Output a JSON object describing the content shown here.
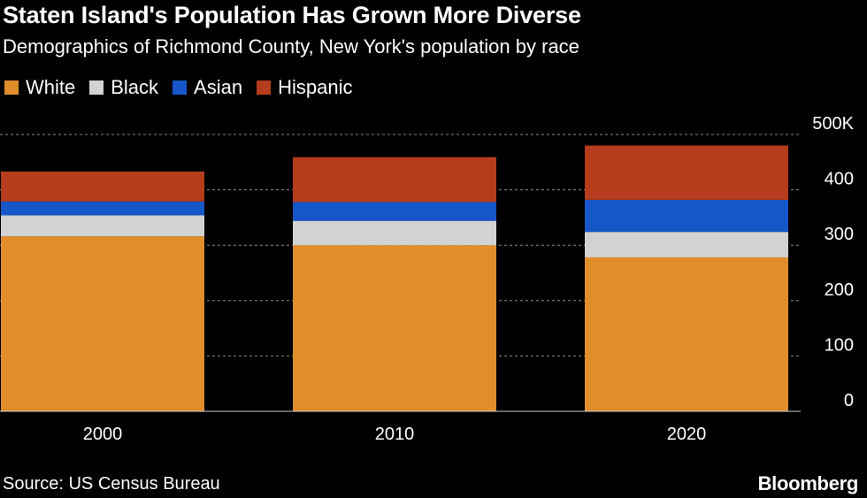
{
  "header": {
    "title": "Staten Island's Population Has Grown More Diverse",
    "subtitle": "Demographics of Richmond County, New York's population by race"
  },
  "footer": {
    "source": "Source: US Census Bureau",
    "brand": "Bloomberg"
  },
  "chart_data": {
    "type": "bar",
    "stacked": true,
    "title": "Staten Island's Population Has Grown More Diverse",
    "subtitle": "Demographics of Richmond County, New York's population by race",
    "categories": [
      "2000",
      "2010",
      "2020"
    ],
    "series": [
      {
        "name": "White",
        "color": "#e08e2b",
        "values": [
          316,
          300,
          278
        ]
      },
      {
        "name": "Black",
        "color": "#d2d2d2",
        "values": [
          38,
          44,
          46
        ]
      },
      {
        "name": "Asian",
        "color": "#1556c9",
        "values": [
          25,
          34,
          58
        ]
      },
      {
        "name": "Hispanic",
        "color": "#b53c1c",
        "values": [
          54,
          81,
          98
        ]
      }
    ],
    "ylim": [
      0,
      500
    ],
    "yticks": [
      0,
      100,
      200,
      300,
      400,
      500
    ],
    "ytick_labels": [
      "0",
      "100",
      "200",
      "300",
      "400",
      "500K"
    ],
    "y_axis_side": "right",
    "grid": true,
    "legend": "top-left",
    "xlabel": "",
    "ylabel": ""
  }
}
